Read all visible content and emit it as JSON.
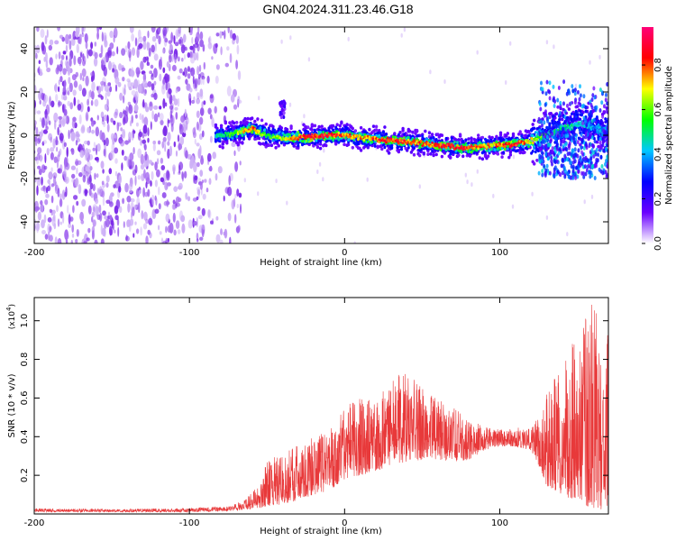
{
  "figure": {
    "title": "GN04.2024.311.23.46.G18"
  },
  "chart_data": [
    {
      "type": "heatmap",
      "xlabel": "Height of straight line (km)",
      "ylabel": "Frequency (Hz)",
      "xlim": [
        -200,
        170
      ],
      "ylim": [
        -50,
        50
      ],
      "x_ticks": [
        -200,
        -100,
        0,
        100
      ],
      "y_ticks": [
        -40,
        -20,
        0,
        20,
        40
      ],
      "colorbar": {
        "label": "Normalized spectral amplitude",
        "range": [
          0,
          0.97
        ],
        "ticks": [
          0.0,
          0.2,
          0.4,
          0.6,
          0.8
        ],
        "colors": [
          "#ffffff",
          "#6a00ff",
          "#0000ff",
          "#00c8ff",
          "#00ff00",
          "#ffff00",
          "#ff0000",
          "#ff0078"
        ]
      },
      "ridge": {
        "x": [
          -83,
          -70,
          -60,
          -50,
          -40,
          -25,
          -10,
          0,
          10,
          25,
          40,
          55,
          65,
          80,
          95,
          110,
          120,
          130,
          140,
          150,
          160,
          170
        ],
        "frequency": [
          0,
          1,
          3,
          0,
          -1,
          -1,
          0,
          0,
          -1,
          -2,
          -3,
          -4,
          -5,
          -6,
          -5,
          -4,
          -3,
          0,
          3,
          5,
          4,
          3
        ],
        "amplitude": [
          0.45,
          0.6,
          0.85,
          0.55,
          0.65,
          0.9,
          0.85,
          0.8,
          0.75,
          0.85,
          0.8,
          0.8,
          0.85,
          0.85,
          0.75,
          0.9,
          0.7,
          0.55,
          0.5,
          0.45,
          0.4,
          0.4
        ]
      },
      "noise_region": {
        "x_range": [
          -200,
          -75
        ],
        "colors": [
          "#7b2ae8",
          "#a66cf0",
          "#cdb0f7"
        ]
      }
    },
    {
      "type": "line",
      "xlabel": "Height of straight line (km)",
      "ylabel": "SNR (10 * v/v)",
      "scale_label": "(x10",
      "scale_exp": "4",
      "scale_close": ")",
      "xlim": [
        -200,
        170
      ],
      "ylim": [
        0,
        1.12
      ],
      "x_ticks": [
        -200,
        -100,
        0,
        100
      ],
      "y_ticks": [
        0.2,
        0.4,
        0.6,
        0.8,
        1.0
      ],
      "color": "#e8393a",
      "envelope": {
        "x": [
          -200,
          -150,
          -100,
          -75,
          -65,
          -55,
          -50,
          -40,
          -30,
          -20,
          -10,
          0,
          10,
          20,
          30,
          40,
          50,
          60,
          70,
          80,
          90,
          100,
          110,
          120,
          125,
          130,
          140,
          150,
          160,
          165,
          170
        ],
        "min": [
          0.01,
          0.01,
          0.01,
          0.015,
          0.02,
          0.03,
          0.04,
          0.05,
          0.07,
          0.1,
          0.12,
          0.18,
          0.2,
          0.22,
          0.25,
          0.27,
          0.28,
          0.28,
          0.27,
          0.28,
          0.33,
          0.35,
          0.35,
          0.33,
          0.25,
          0.15,
          0.1,
          0.06,
          0.03,
          0.02,
          0.04
        ],
        "max": [
          0.03,
          0.025,
          0.03,
          0.04,
          0.07,
          0.16,
          0.28,
          0.33,
          0.36,
          0.4,
          0.43,
          0.55,
          0.62,
          0.6,
          0.68,
          0.76,
          0.65,
          0.6,
          0.55,
          0.5,
          0.45,
          0.44,
          0.45,
          0.44,
          0.52,
          0.62,
          0.8,
          0.95,
          1.12,
          1.0,
          0.98
        ]
      }
    }
  ]
}
